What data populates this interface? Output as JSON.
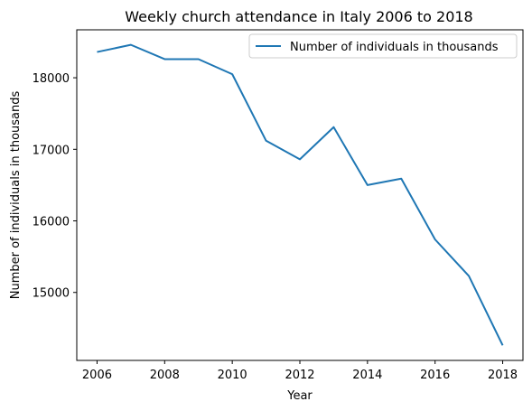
{
  "chart_data": {
    "type": "line",
    "title": "Weekly church attendance in Italy 2006 to 2018",
    "xlabel": "Year",
    "ylabel": "Number of individuals in thousands",
    "x": [
      2006,
      2007,
      2008,
      2009,
      2010,
      2011,
      2012,
      2013,
      2014,
      2015,
      2016,
      2017,
      2018
    ],
    "series": [
      {
        "name": "Number of individuals in thousands",
        "color": "#1f77b4",
        "values": [
          18360,
          18460,
          18260,
          18260,
          18050,
          17120,
          16860,
          17310,
          16500,
          16590,
          15740,
          15230,
          14260
        ]
      }
    ],
    "xticks": [
      2006,
      2008,
      2010,
      2012,
      2014,
      2016,
      2018
    ],
    "yticks": [
      15000,
      16000,
      17000,
      18000
    ],
    "xlim": [
      2005.4,
      2018.6
    ],
    "ylim": [
      14050,
      18670
    ],
    "grid": false,
    "legend_position": "top-right"
  }
}
